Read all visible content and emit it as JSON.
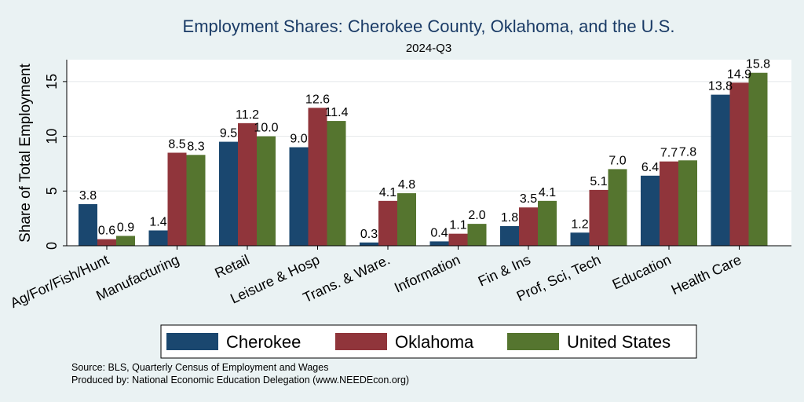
{
  "chart_data": {
    "type": "bar",
    "title": "Employment Shares: Cherokee County, Oklahoma, and the U.S.",
    "subtitle": "2024-Q3",
    "xlabel": "",
    "ylabel": "Share of Total Employment",
    "ylim": [
      0,
      17
    ],
    "yticks": [
      0,
      5,
      10,
      15
    ],
    "grid": true,
    "legend_position": "bottom",
    "categories": [
      "Ag/For/Fish/Hunt",
      "Manufacturing",
      "Retail",
      "Leisure & Hosp",
      "Trans. & Ware.",
      "Information",
      "Fin & Ins",
      "Prof, Sci, Tech",
      "Education",
      "Health Care"
    ],
    "series": [
      {
        "name": "Cherokee",
        "color": "#1a476f",
        "values": [
          3.8,
          1.4,
          9.5,
          9.0,
          0.3,
          0.4,
          1.8,
          1.2,
          6.4,
          13.8
        ],
        "labels": [
          "3.8",
          "1.4",
          "9.5",
          "9.0",
          "0.3",
          "0.4",
          "1.8",
          "1.2",
          "6.4",
          "13.8"
        ]
      },
      {
        "name": "Oklahoma",
        "color": "#90353b",
        "values": [
          0.6,
          8.5,
          11.2,
          12.6,
          4.1,
          1.1,
          3.5,
          5.1,
          7.7,
          14.9
        ],
        "labels": [
          "0.6",
          "8.5",
          "11.2",
          "12.6",
          "4.1",
          "1.1",
          "3.5",
          "5.1",
          "7.7",
          "14.9"
        ]
      },
      {
        "name": "United States",
        "color": "#55752f",
        "values": [
          0.9,
          8.3,
          10.0,
          11.4,
          4.8,
          2.0,
          4.1,
          7.0,
          7.8,
          15.8
        ],
        "labels": [
          "0.9",
          "8.3",
          "10.0",
          "11.4",
          "4.8",
          "2.0",
          "4.1",
          "7.0",
          "7.8",
          "15.8"
        ]
      }
    ],
    "notes": [
      "Source: BLS, Quarterly Census of Employment and Wages",
      "Produced by: National Economic Education Delegation (www.NEEDEcon.org)"
    ]
  }
}
